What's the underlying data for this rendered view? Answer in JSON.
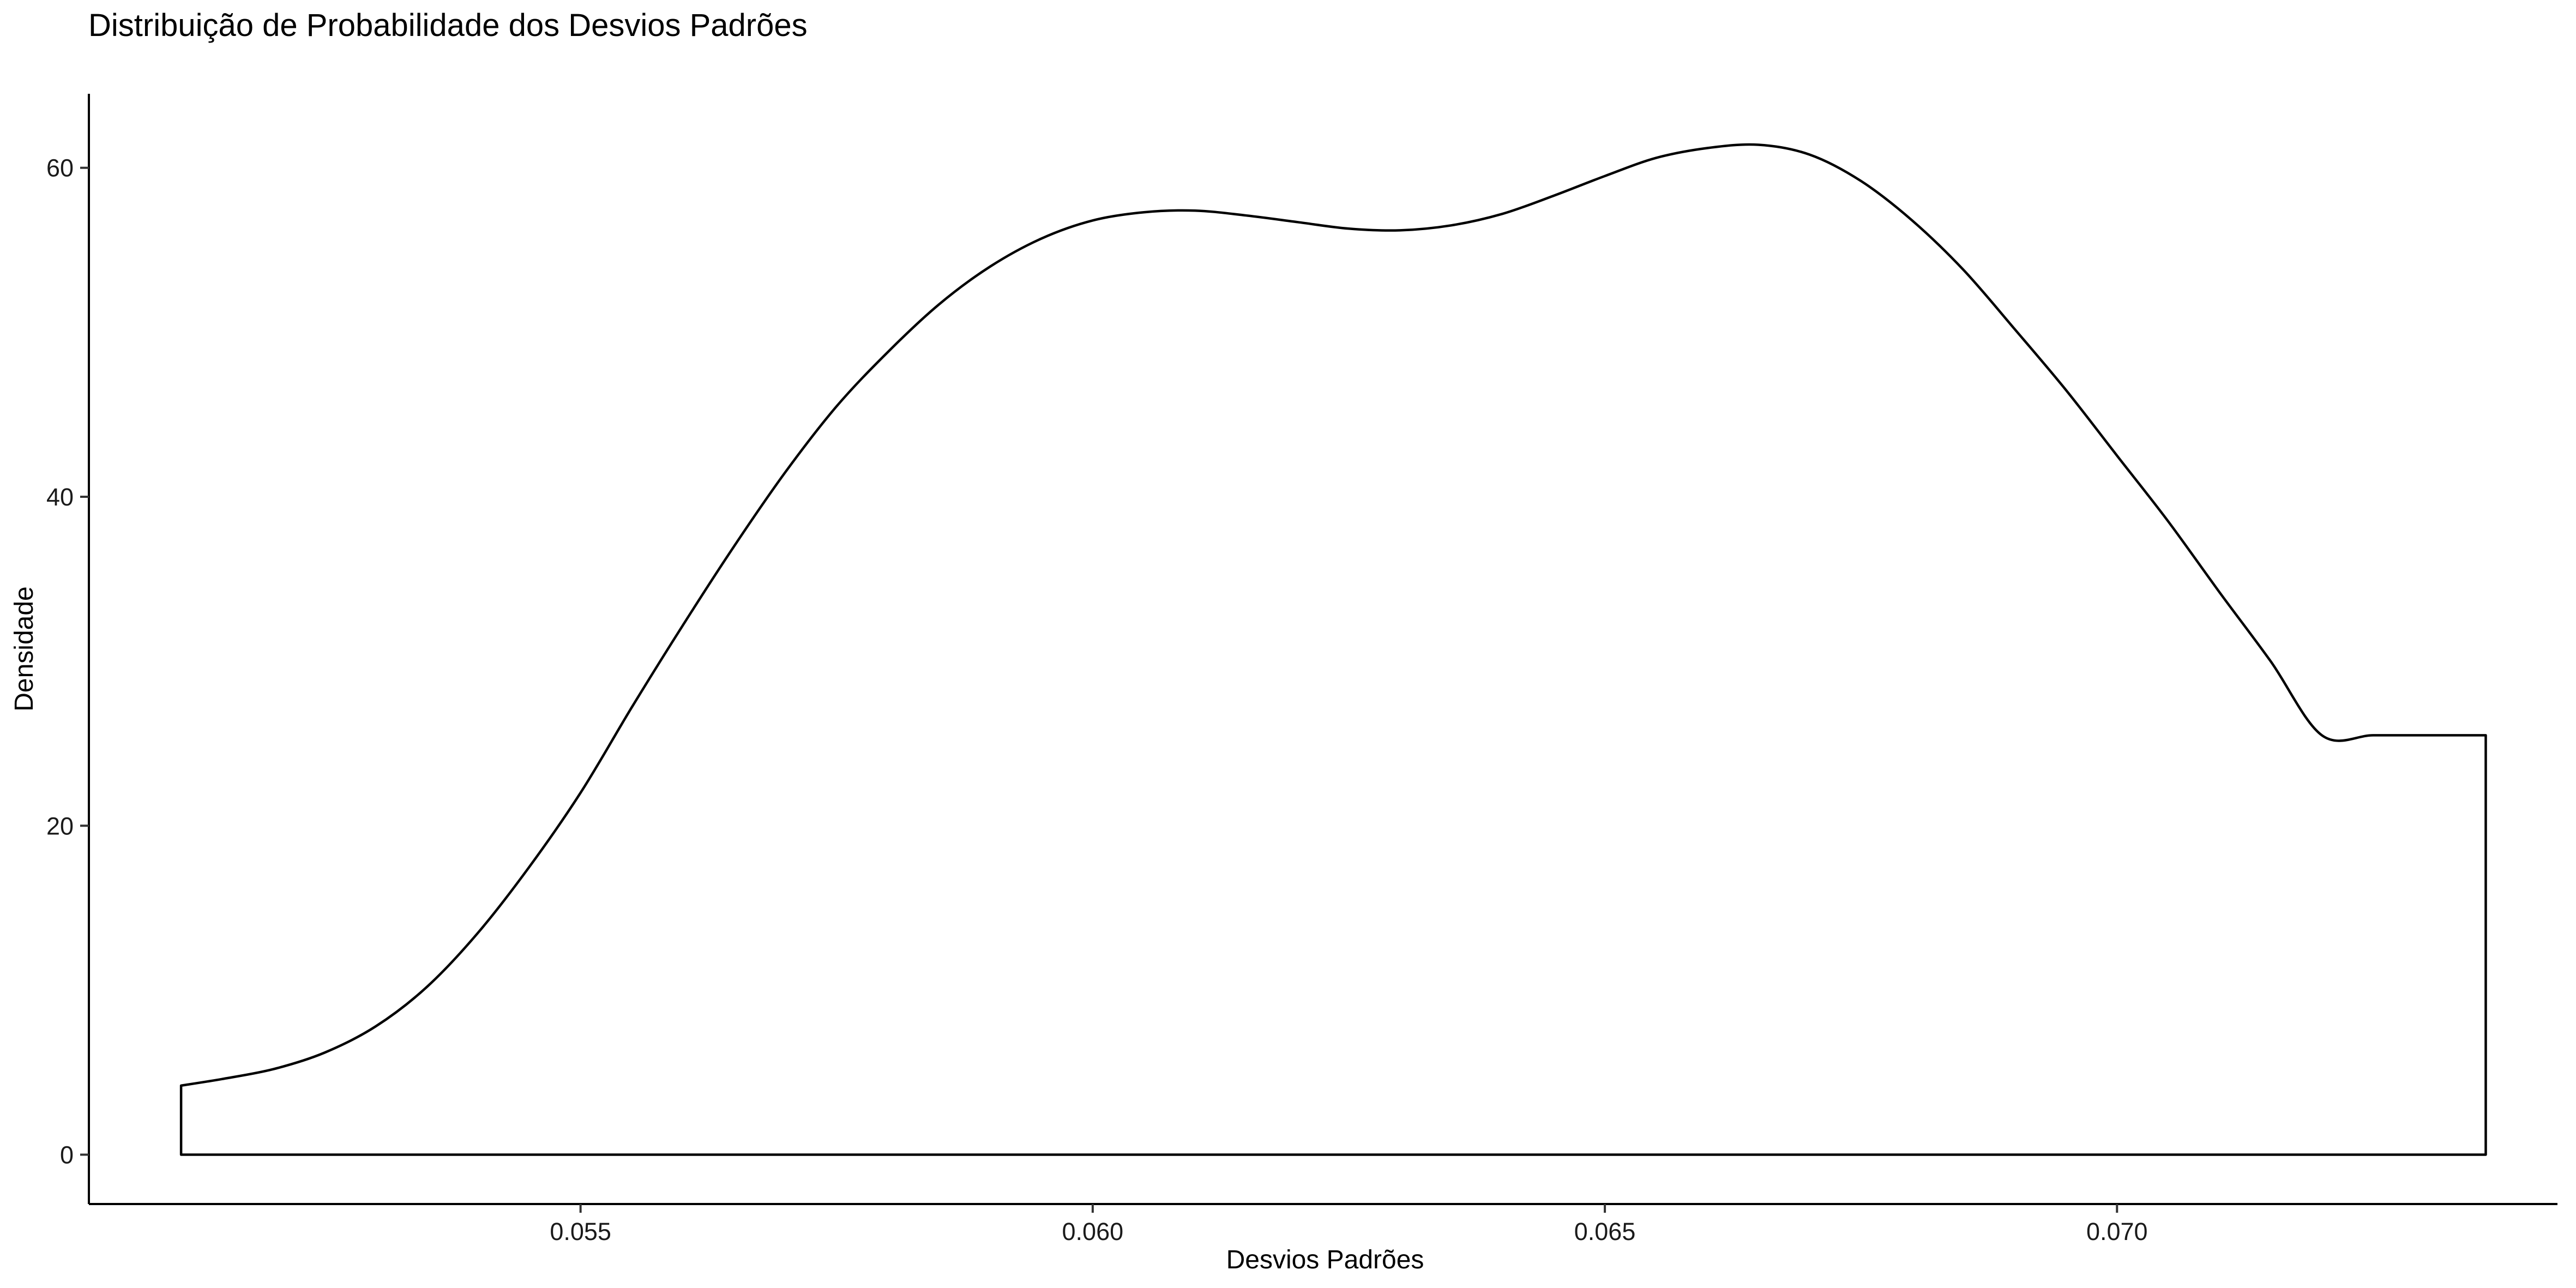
{
  "chart_data": {
    "type": "area",
    "title": "Distribuição de Probabilidade dos Desvios Padrões",
    "xlabel": "Desvios Padrões",
    "ylabel": "Densidade",
    "xlim": [
      0.0502,
      0.0743
    ],
    "ylim": [
      -3,
      64.5
    ],
    "x_ticks": [
      0.055,
      0.06,
      0.065,
      0.07
    ],
    "x_tick_labels": [
      "0.055",
      "0.060",
      "0.065",
      "0.070"
    ],
    "y_ticks": [
      0,
      20,
      40,
      60
    ],
    "y_tick_labels": [
      "0",
      "20",
      "40",
      "60"
    ],
    "grid": false,
    "legend": "none",
    "colors": {
      "outline": "#000000",
      "fill": "#ffffff",
      "background": "#ffffff"
    },
    "series": [
      {
        "x": [
          0.0511,
          0.0515,
          0.052,
          0.0525,
          0.053,
          0.0535,
          0.054,
          0.0545,
          0.055,
          0.0555,
          0.056,
          0.0565,
          0.057,
          0.0575,
          0.058,
          0.0585,
          0.059,
          0.0595,
          0.06,
          0.0605,
          0.061,
          0.0615,
          0.062,
          0.0625,
          0.063,
          0.0635,
          0.064,
          0.0645,
          0.065,
          0.0655,
          0.066,
          0.0665,
          0.067,
          0.0675,
          0.068,
          0.0685,
          0.069,
          0.0695,
          0.07,
          0.0705,
          0.071,
          0.0715,
          0.072,
          0.0725,
          0.073,
          0.0736
        ],
        "y": [
          4.2,
          4.6,
          5.2,
          6.2,
          7.8,
          10.2,
          13.5,
          17.5,
          22.0,
          27.2,
          32.2,
          37.0,
          41.5,
          45.5,
          48.8,
          51.7,
          54.0,
          55.7,
          56.8,
          57.3,
          57.4,
          57.1,
          56.7,
          56.3,
          56.2,
          56.5,
          57.2,
          58.3,
          59.5,
          60.6,
          61.2,
          61.4,
          60.8,
          59.2,
          56.8,
          53.8,
          50.2,
          46.5,
          42.5,
          38.5,
          34.2,
          30.0,
          25.5,
          25.5,
          25.5,
          25.5
        ]
      }
    ]
  }
}
